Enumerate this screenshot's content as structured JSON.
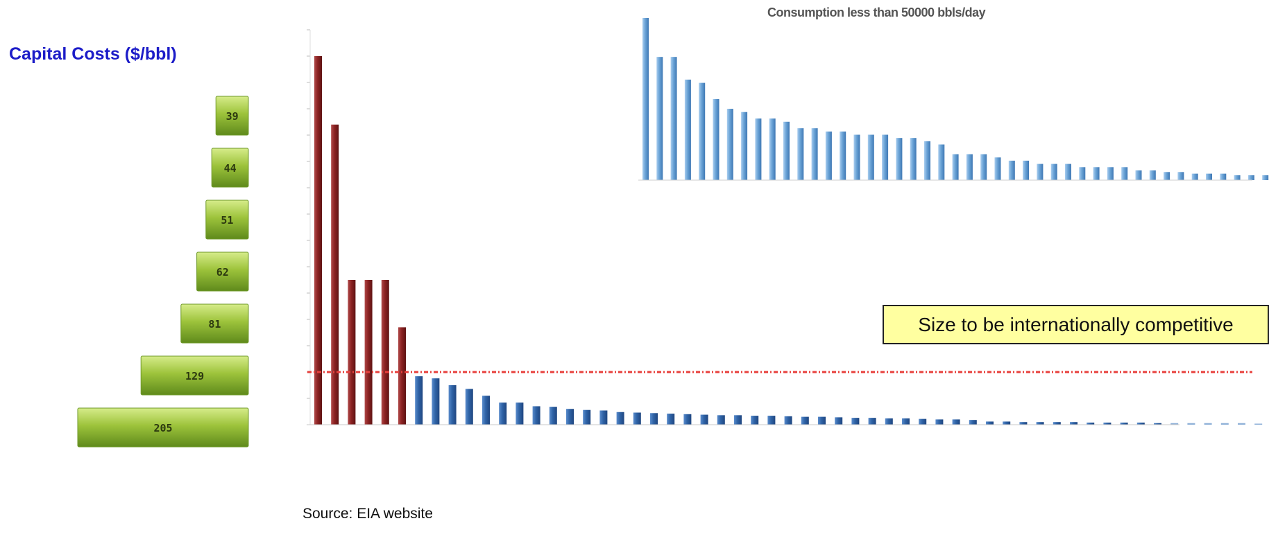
{
  "capital_costs": {
    "title": "Capital Costs ($/bbl)",
    "values": [
      39,
      44,
      51,
      62,
      81,
      129,
      205
    ],
    "labels": [
      "39",
      "44",
      "51",
      "62",
      "81",
      "129",
      "205"
    ],
    "bar_color": "#9dc33b"
  },
  "chart_data": [
    {
      "type": "bar",
      "title": "",
      "ylim": [
        0,
        750
      ],
      "threshold": 100,
      "source_note": "Source: EIA website",
      "callout": "Size to be internationally competitive",
      "colors": {
        "above": "#8b2222",
        "below": "#2f63a6",
        "threshold_line": "#e8403c"
      },
      "series": [
        {
          "values": [
            700,
            570,
            275,
            275,
            275,
            185,
            92,
            88,
            75,
            68,
            55,
            42,
            42,
            35,
            34,
            30,
            28,
            27,
            24,
            23,
            22,
            21,
            20,
            19,
            18,
            18,
            17,
            17,
            16,
            15,
            15,
            14,
            13,
            13,
            12,
            12,
            11,
            10,
            10,
            9,
            6,
            6,
            5,
            5,
            5,
            5,
            4,
            4,
            4,
            4,
            3,
            3,
            3,
            3,
            3,
            3,
            2,
            2,
            2,
            2,
            2
          ]
        }
      ]
    },
    {
      "type": "bar",
      "title": "Consumption less than 50000 bbls/day",
      "color": "#6aa3d6",
      "series": [
        {
          "values": [
            50,
            38,
            38,
            31,
            30,
            25,
            22,
            21,
            19,
            19,
            18,
            16,
            16,
            15,
            15,
            14,
            14,
            14,
            13,
            13,
            12,
            11,
            8,
            8,
            8,
            7,
            6,
            6,
            5,
            5,
            5,
            4,
            4,
            4,
            4,
            3,
            3,
            2.5,
            2.5,
            2,
            2,
            2,
            1.5,
            1.5,
            1.5,
            1,
            1,
            1
          ]
        }
      ]
    }
  ]
}
